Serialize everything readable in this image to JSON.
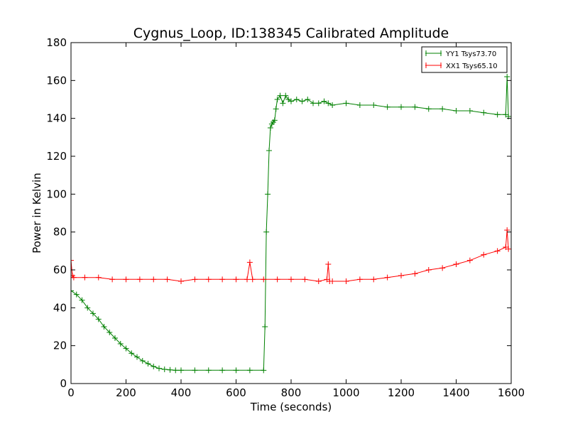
{
  "chart_data": {
    "type": "line",
    "title": "Cygnus_Loop, ID:138345 Calibrated Amplitude",
    "xlabel": "Time (seconds)",
    "ylabel": "Power in Kelvin",
    "xlim": [
      0,
      1600
    ],
    "ylim": [
      0,
      180
    ],
    "xticks": [
      "0",
      "200",
      "400",
      "600",
      "800",
      "1000",
      "1200",
      "1400",
      "1600"
    ],
    "yticks": [
      "0",
      "20",
      "40",
      "60",
      "80",
      "100",
      "120",
      "140",
      "160",
      "180"
    ],
    "grid": false,
    "legend_position": "top-right",
    "marker": "plus",
    "series": [
      {
        "name": "YY1 Tsys73.70",
        "color": "#008000",
        "x": [
          0,
          20,
          40,
          60,
          80,
          100,
          120,
          140,
          160,
          180,
          200,
          220,
          240,
          260,
          280,
          300,
          320,
          340,
          360,
          380,
          400,
          450,
          500,
          550,
          600,
          650,
          700,
          705,
          710,
          715,
          720,
          725,
          730,
          735,
          740,
          745,
          750,
          760,
          770,
          780,
          790,
          800,
          820,
          840,
          860,
          880,
          900,
          920,
          935,
          950,
          1000,
          1050,
          1100,
          1150,
          1200,
          1250,
          1300,
          1350,
          1400,
          1450,
          1500,
          1550,
          1580,
          1585,
          1590
        ],
        "values": [
          49,
          47,
          44,
          40,
          37,
          34,
          30,
          27,
          24,
          21,
          18.5,
          16,
          14,
          12,
          10.5,
          9,
          8,
          7.5,
          7.2,
          7,
          7,
          7,
          7,
          7,
          7,
          7,
          7,
          30,
          80,
          100,
          123,
          135,
          137,
          138,
          139,
          145,
          150,
          152,
          148,
          152,
          150,
          149,
          150,
          149,
          150,
          148,
          148,
          149,
          148,
          147,
          148,
          147,
          147,
          146,
          146,
          146,
          145,
          145,
          144,
          144,
          143,
          142,
          142,
          162,
          141
        ]
      },
      {
        "name": "XX1 Tsys65.10",
        "color": "#ff0000",
        "x": [
          0,
          5,
          10,
          50,
          100,
          150,
          200,
          250,
          300,
          350,
          400,
          450,
          500,
          550,
          600,
          640,
          650,
          660,
          700,
          750,
          800,
          850,
          900,
          930,
          935,
          940,
          950,
          1000,
          1050,
          1100,
          1150,
          1200,
          1250,
          1300,
          1350,
          1400,
          1450,
          1500,
          1550,
          1580,
          1585,
          1590
        ],
        "values": [
          65,
          57,
          56,
          56,
          56,
          55,
          55,
          55,
          55,
          55,
          54,
          55,
          55,
          55,
          55,
          55,
          64,
          55,
          55,
          55,
          55,
          55,
          54,
          55,
          63,
          54,
          54,
          54,
          55,
          55,
          56,
          57,
          58,
          60,
          61,
          63,
          65,
          68,
          70,
          72,
          81,
          71
        ]
      }
    ]
  }
}
